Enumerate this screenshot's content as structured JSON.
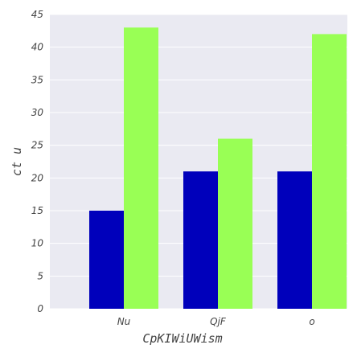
{
  "chart_data": {
    "type": "bar",
    "title": "",
    "xlabel": "CpKIWiUWism",
    "ylabel": "ct u",
    "categories": [
      "Nu",
      "QjF",
      "o"
    ],
    "series": [
      {
        "values": [
          15,
          21,
          21
        ],
        "color": "#0000bb"
      },
      {
        "values": [
          43,
          26,
          42
        ],
        "color": "#99ff55"
      }
    ],
    "ylim": [
      0,
      45
    ],
    "yticks": [
      "0",
      "5",
      "10",
      "15",
      "20",
      "25",
      "30",
      "35",
      "40",
      "45"
    ],
    "grid": true,
    "background": "#eaeaf2"
  }
}
